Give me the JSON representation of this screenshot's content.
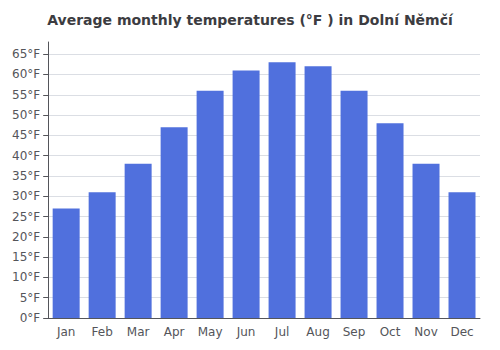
{
  "chart_data": {
    "type": "bar",
    "title": "Average monthly temperatures (°F ) in Dolní Němčí",
    "categories": [
      "Jan",
      "Feb",
      "Mar",
      "Apr",
      "May",
      "Jun",
      "Jul",
      "Aug",
      "Sep",
      "Oct",
      "Nov",
      "Dec"
    ],
    "values": [
      27,
      31,
      38,
      47,
      56,
      61,
      63,
      62,
      56,
      48,
      38,
      31
    ],
    "ylim": [
      0,
      68
    ],
    "yticks": [
      {
        "value": 0,
        "label": "0°F"
      },
      {
        "value": 5,
        "label": "5°F"
      },
      {
        "value": 10,
        "label": "10°F"
      },
      {
        "value": 15,
        "label": "15°F"
      },
      {
        "value": 20,
        "label": "20°F"
      },
      {
        "value": 25,
        "label": "25°F"
      },
      {
        "value": 30,
        "label": "30°F"
      },
      {
        "value": 35,
        "label": "35°F"
      },
      {
        "value": 40,
        "label": "40°F"
      },
      {
        "value": 45,
        "label": "45°F"
      },
      {
        "value": 50,
        "label": "50°F"
      },
      {
        "value": 55,
        "label": "55°F"
      },
      {
        "value": 60,
        "label": "60°F"
      },
      {
        "value": 65,
        "label": "65°F"
      }
    ],
    "grid": true
  }
}
